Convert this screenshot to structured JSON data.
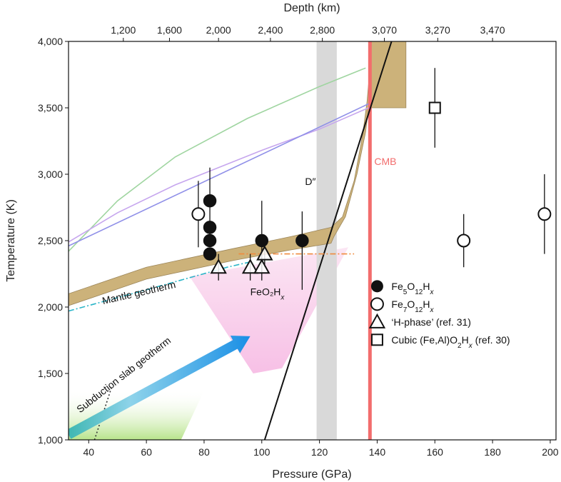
{
  "chart_data": {
    "type": "scatter",
    "title": "",
    "xlabel": "Pressure (GPa)",
    "ylabel": "Temperature (K)",
    "x2label": "Depth (km)",
    "xlim": [
      33,
      202
    ],
    "ylim": [
      1000,
      4000
    ],
    "x_ticks": [
      40,
      60,
      80,
      100,
      120,
      140,
      160,
      180,
      200
    ],
    "x_tick_labels": [
      "40",
      "60",
      "80",
      "100",
      "120",
      "140",
      "160",
      "180",
      "200"
    ],
    "y_ticks": [
      1000,
      1500,
      2000,
      2500,
      3000,
      3500,
      4000
    ],
    "y_tick_labels": [
      "1,000",
      "1,500",
      "2,000",
      "2,500",
      "3,000",
      "3,500",
      "4,000"
    ],
    "top_ticks": [
      {
        "p": 52,
        "label": "1,200"
      },
      {
        "p": 68,
        "label": "1,600"
      },
      {
        "p": 85,
        "label": "2,000"
      },
      {
        "p": 103,
        "label": "2,400"
      },
      {
        "p": 121,
        "label": "2,800"
      },
      {
        "p": 142.5,
        "label": "3,070"
      },
      {
        "p": 161,
        "label": "3,270"
      },
      {
        "p": 180,
        "label": "3,470"
      }
    ],
    "grid": false,
    "legend_position": "bottom-right",
    "series": [
      {
        "name": "Fe5O12Hx",
        "label_html": "Fe<tspan baseline-shift='sub' font-size='10'>5</tspan>O<tspan baseline-shift='sub' font-size='10'>12</tspan>H<tspan baseline-shift='sub' font-size='10' font-style='italic'>x</tspan>",
        "marker": "filled-circle",
        "points": [
          {
            "x": 82,
            "y": 2800,
            "err": [
              2500,
              3050
            ]
          },
          {
            "x": 82,
            "y": 2600
          },
          {
            "x": 82,
            "y": 2500
          },
          {
            "x": 82,
            "y": 2400
          },
          {
            "x": 100,
            "y": 2500,
            "err": [
              2250,
              2800
            ]
          },
          {
            "x": 114,
            "y": 2500,
            "err": [
              2130,
              2720
            ]
          }
        ]
      },
      {
        "name": "Fe7O12Hx",
        "label_html": "Fe<tspan baseline-shift='sub' font-size='10'>7</tspan>O<tspan baseline-shift='sub' font-size='10'>12</tspan>H<tspan baseline-shift='sub' font-size='10' font-style='italic'>x</tspan>",
        "marker": "open-circle",
        "points": [
          {
            "x": 78,
            "y": 2700,
            "err": [
              2450,
              2950
            ]
          },
          {
            "x": 170,
            "y": 2500,
            "err": [
              2300,
              2700
            ]
          },
          {
            "x": 198,
            "y": 2700,
            "err": [
              2400,
              3000
            ]
          }
        ]
      },
      {
        "name": "'H-phase' (ref. 31)",
        "label_html": "‘H-phase’ (ref. 31)",
        "marker": "open-triangle",
        "points": [
          {
            "x": 85,
            "y": 2300,
            "err": [
              2200,
              2400
            ]
          },
          {
            "x": 96,
            "y": 2300,
            "err": [
              2200,
              2400
            ]
          },
          {
            "x": 100,
            "y": 2300,
            "err": [
              2200,
              2400
            ]
          },
          {
            "x": 101,
            "y": 2400,
            "err": [
              2300,
              2500
            ]
          }
        ]
      },
      {
        "name": "Cubic (Fe,Al)O2Hx (ref. 30)",
        "label_html": "Cubic (Fe,Al)O<tspan baseline-shift='sub' font-size='10'>2</tspan>H<tspan baseline-shift='sub' font-size='10' font-style='italic'>x</tspan> (ref. 30)",
        "marker": "open-square",
        "points": [
          {
            "x": 160,
            "y": 3500,
            "err": [
              3200,
              3800
            ]
          }
        ]
      }
    ],
    "lines": [
      {
        "id": "green-curve",
        "color": "#9fd5a0",
        "points": [
          [
            33,
            2420
          ],
          [
            50,
            2800
          ],
          [
            70,
            3130
          ],
          [
            95,
            3420
          ],
          [
            120,
            3660
          ],
          [
            136,
            3800
          ]
        ]
      },
      {
        "id": "purple-curve",
        "color": "#c6a6ee",
        "points": [
          [
            33,
            2490
          ],
          [
            50,
            2710
          ],
          [
            70,
            2920
          ],
          [
            100,
            3180
          ],
          [
            120,
            3340
          ],
          [
            137,
            3500
          ]
        ]
      },
      {
        "id": "blue-line",
        "color": "#8f8fe8",
        "points": [
          [
            33,
            2460
          ],
          [
            137,
            3530
          ]
        ]
      },
      {
        "id": "black-melting-line",
        "color": "#111111",
        "points": [
          [
            101,
            1000
          ],
          [
            145,
            4000
          ]
        ]
      },
      {
        "id": "orange-dashdot",
        "color": "#f08a3c",
        "dash": "dashdot",
        "points": [
          [
            92,
            2400
          ],
          [
            132,
            2400
          ]
        ]
      },
      {
        "id": "cyan-dashdot",
        "color": "#2bb5c8",
        "dash": "dashdot",
        "points": [
          [
            33,
            1970
          ],
          [
            60,
            2130
          ],
          [
            88,
            2300
          ],
          [
            96,
            2340
          ]
        ]
      },
      {
        "id": "slab-dotted",
        "color": "#333333",
        "dash": "dot",
        "points": [
          [
            42,
            1000
          ],
          [
            48,
            1400
          ]
        ]
      }
    ],
    "bands": [
      {
        "id": "mantle-geotherm-band",
        "color": "#ccb27a",
        "upper": [
          [
            33,
            2100
          ],
          [
            60,
            2300
          ],
          [
            90,
            2440
          ],
          [
            110,
            2530
          ],
          [
            124,
            2600
          ]
        ],
        "lower": [
          [
            33,
            2010
          ],
          [
            60,
            2210
          ],
          [
            90,
            2350
          ],
          [
            110,
            2430
          ],
          [
            124,
            2480
          ]
        ]
      },
      {
        "id": "d-double-prime-band",
        "color": "#d9d9d9",
        "x": [
          119,
          126
        ],
        "y": [
          1000,
          4000
        ]
      },
      {
        "id": "cmb-line",
        "color": "#f26d6d",
        "x": 137.5
      }
    ],
    "annotations": {
      "mantle_geotherm": "Mantle geotherm",
      "feo2hx": "FeO₂H",
      "feo2hx_sub": "x",
      "d_double_prime": "D″",
      "cmb": "CMB",
      "subduction": "Subduction slab geotherm"
    }
  }
}
